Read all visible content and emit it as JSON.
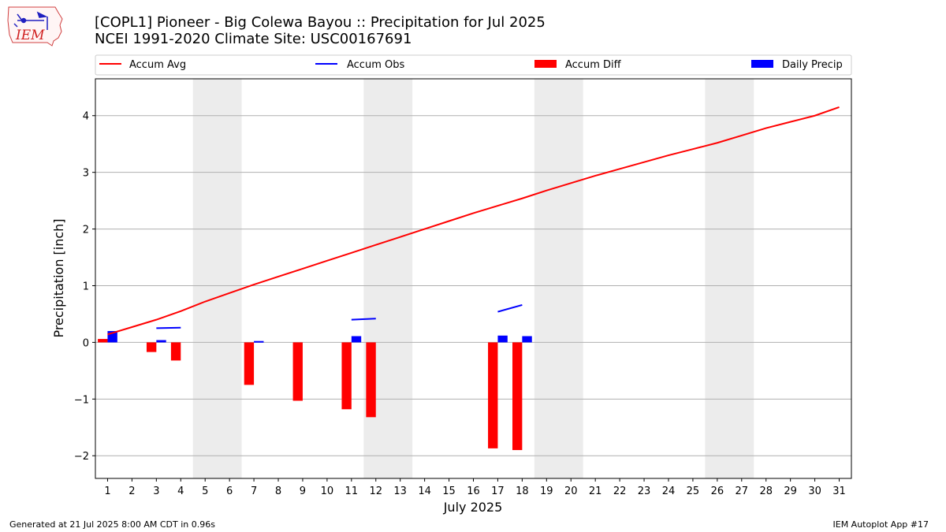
{
  "header": {
    "title_line1": "[COPL1] Pioneer - Big Colewa Bayou :: Precipitation for Jul 2025",
    "title_line2": "NCEI 1991-2020 Climate Site: USC00167691"
  },
  "logo": {
    "text": "IEM",
    "icon": "iem-iowa-logo"
  },
  "footer": {
    "generated": "Generated at 21 Jul 2025 8:00 AM CDT in 0.96s",
    "app": "IEM Autoplot App #17"
  },
  "colors": {
    "avg": "#ff0000",
    "obs": "#0000ff",
    "diff": "#ff0000",
    "daily": "#0000ff",
    "weekend": "#ececec",
    "grid": "#b0b0b0"
  },
  "chart_data": {
    "type": "bar",
    "xlabel": "July 2025",
    "ylabel": "Precipitation [inch]",
    "xlim": [
      0.5,
      31.5
    ],
    "ylim": [
      -2.4,
      4.65
    ],
    "yticks": [
      -2,
      -1,
      0,
      1,
      2,
      3,
      4
    ],
    "ytick_labels": [
      "−2",
      "−1",
      "0",
      "1",
      "2",
      "3",
      "4"
    ],
    "days": [
      1,
      2,
      3,
      4,
      5,
      6,
      7,
      8,
      9,
      10,
      11,
      12,
      13,
      14,
      15,
      16,
      17,
      18,
      19,
      20,
      21,
      22,
      23,
      24,
      25,
      26,
      27,
      28,
      29,
      30,
      31
    ],
    "weekend_spans": [
      [
        4.5,
        6.5
      ],
      [
        11.5,
        13.5
      ],
      [
        18.5,
        20.5
      ],
      [
        25.5,
        27.5
      ]
    ],
    "grid": true,
    "legend_location": "top",
    "legend": [
      "Accum Avg",
      "Accum Obs",
      "Accum Diff",
      "Daily Precip"
    ],
    "series": [
      {
        "name": "Accum Avg",
        "kind": "line",
        "x": [
          1,
          2,
          3,
          4,
          5,
          6,
          7,
          8,
          9,
          10,
          11,
          12,
          13,
          14,
          15,
          16,
          17,
          18,
          19,
          20,
          21,
          22,
          23,
          24,
          25,
          26,
          27,
          28,
          29,
          30,
          31
        ],
        "values": [
          0.14,
          0.27,
          0.4,
          0.55,
          0.72,
          0.87,
          1.02,
          1.16,
          1.3,
          1.44,
          1.58,
          1.72,
          1.86,
          2.0,
          2.14,
          2.28,
          2.41,
          2.54,
          2.68,
          2.81,
          2.94,
          3.06,
          3.18,
          3.3,
          3.41,
          3.52,
          3.65,
          3.78,
          3.89,
          4.0,
          4.15
        ]
      },
      {
        "name": "Accum Obs",
        "kind": "segments",
        "segments": [
          {
            "x": [
              3,
              4
            ],
            "values": [
              0.25,
              0.26
            ]
          },
          {
            "x": [
              7,
              7.4
            ],
            "values": [
              0.01,
              0.01
            ]
          },
          {
            "x": [
              11,
              12
            ],
            "values": [
              0.4,
              0.42
            ]
          },
          {
            "x": [
              17,
              18
            ],
            "values": [
              0.54,
              0.66
            ]
          }
        ]
      },
      {
        "name": "Accum Diff",
        "kind": "bar",
        "offset": -0.2,
        "x": [
          1,
          3,
          4,
          7,
          9,
          11,
          12,
          17,
          18
        ],
        "values": [
          0.06,
          -0.17,
          -0.32,
          -0.75,
          -1.03,
          -1.18,
          -1.32,
          -1.87,
          -1.9
        ]
      },
      {
        "name": "Daily Precip",
        "kind": "bar",
        "offset": 0.2,
        "x": [
          1,
          3,
          7,
          11,
          17,
          18
        ],
        "values": [
          0.2,
          0.04,
          0.01,
          0.11,
          0.12,
          0.11
        ]
      }
    ]
  }
}
